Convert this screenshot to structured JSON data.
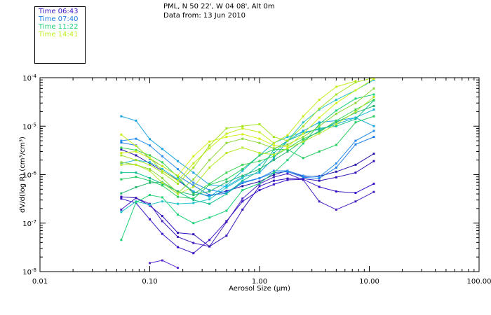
{
  "header": {
    "location": "PML, N 50 22', W 04 08', Alt 0m",
    "data_from": "Data from: 13 Jun 2010"
  },
  "legend": [
    {
      "label": "Time 06:43",
      "color": "#3a14c8"
    },
    {
      "label": "Time 07:40",
      "color": "#1f7ee6"
    },
    {
      "label": "Time 11:22",
      "color": "#20d27a"
    },
    {
      "label": "Time 14:41",
      "color": "#c4ee1e"
    }
  ],
  "chart_data": {
    "type": "line",
    "title": "PML, N 50 22', W 04 08', Alt 0m",
    "subtitle": "Data from: 13 Jun 2010",
    "xlabel": "Aerosol Size (μm)",
    "ylabel": "dV/d(log R) (cm³/cm³)",
    "xscale": "log",
    "yscale": "log",
    "xlim": [
      0.01,
      100
    ],
    "ylim": [
      1e-08,
      0.0001
    ],
    "x_ticks": [
      0.01,
      0.1,
      1,
      10,
      100
    ],
    "x_tick_labels": [
      "0.01",
      "0.10",
      "1.00",
      "10.00",
      "100.00"
    ],
    "y_ticks": [
      1e-08,
      1e-07,
      1e-06,
      1e-05,
      0.0001
    ],
    "y_tick_labels": [
      {
        "base": "10",
        "exp": "-8"
      },
      {
        "base": "10",
        "exp": "-7"
      },
      {
        "base": "10",
        "exp": "-6"
      },
      {
        "base": "10",
        "exp": "-5"
      },
      {
        "base": "10",
        "exp": "-4"
      }
    ],
    "x": [
      0.055,
      0.075,
      0.1,
      0.13,
      0.18,
      0.25,
      0.35,
      0.5,
      0.7,
      1.0,
      1.35,
      1.8,
      2.5,
      3.5,
      5.0,
      7.5,
      11.0
    ],
    "series": [
      {
        "name": "06:43",
        "color": "#3a14c8",
        "values": [
          3.2e-07,
          2.6e-07,
          1.2e-07,
          6e-08,
          3.2e-08,
          2.4e-08,
          4.5e-08,
          1.1e-07,
          2.8e-07,
          4.8e-07,
          6.3e-07,
          7.8e-07,
          8e-07,
          5.6e-07,
          4.5e-07,
          4.2e-07,
          6.5e-07
        ]
      },
      {
        "name": "06:43",
        "color": "#4820c0",
        "values": [
          1.9e-07,
          3.3e-07,
          2.5e-07,
          1.1e-07,
          5.2e-08,
          3.9e-08,
          3.3e-08,
          1.05e-07,
          3.2e-07,
          6.5e-07,
          8.9e-07,
          1.05e-06,
          7.8e-07,
          2.8e-07,
          1.9e-07,
          2.8e-07,
          4.4e-07
        ]
      },
      {
        "name": "06:43",
        "color": "#3410b8",
        "values": [
          3.5e-07,
          3.3e-07,
          2.3e-07,
          1.4e-07,
          6.3e-08,
          5.9e-08,
          3.3e-08,
          5.5e-08,
          1.9e-07,
          5.8e-07,
          7.5e-07,
          8.3e-07,
          8.3e-07,
          7.5e-07,
          8.8e-07,
          1.1e-06,
          1.9e-06
        ]
      },
      {
        "name": "06:43",
        "color": "#5a2cd0",
        "values": [
          null,
          null,
          1.5e-08,
          1.7e-08,
          1.2e-08,
          null,
          null,
          null,
          null,
          null,
          null,
          null,
          null,
          null,
          null,
          null,
          null
        ]
      },
      {
        "name": "06:43",
        "color": "#2a18a8",
        "values": [
          3.3e-06,
          2.5e-06,
          1.7e-06,
          1.2e-06,
          7.7e-07,
          4.4e-07,
          3.6e-07,
          4.6e-07,
          5.8e-07,
          7.2e-07,
          1e-06,
          1.2e-06,
          9.2e-07,
          9.3e-07,
          1.15e-06,
          1.6e-06,
          2.7e-06
        ]
      },
      {
        "name": "07:40",
        "color": "#1f7ee6",
        "values": [
          4.6e-06,
          4e-06,
          2.1e-06,
          1.5e-06,
          9.5e-07,
          6e-07,
          3.8e-07,
          4.1e-07,
          6.7e-07,
          8.4e-07,
          1.1e-06,
          1.15e-06,
          8.8e-07,
          8.4e-07,
          1.4e-06,
          4.2e-06,
          6e-06
        ]
      },
      {
        "name": "07:40",
        "color": "#2a8ef0",
        "values": [
          5e-06,
          5.5e-06,
          4e-06,
          2.4e-06,
          1.3e-06,
          6.8e-07,
          4.8e-07,
          4.3e-07,
          7e-07,
          8.5e-07,
          1.2e-06,
          1.2e-06,
          9.5e-07,
          9e-07,
          1.7e-06,
          5e-06,
          8e-06
        ]
      },
      {
        "name": "07:40",
        "color": "#1ca6e0",
        "values": [
          1.6e-05,
          1.3e-05,
          5.4e-06,
          3.4e-06,
          1.9e-06,
          1.1e-06,
          6.2e-07,
          5.7e-07,
          9e-07,
          1.1e-06,
          2.2e-06,
          5e-06,
          8e-06,
          1.2e-05,
          1.3e-05,
          1.5e-05,
          1e-05
        ]
      },
      {
        "name": "07:40",
        "color": "#18b8d8",
        "values": [
          1.7e-06,
          2e-06,
          1.8e-06,
          1.3e-06,
          8e-07,
          4.5e-07,
          3.5e-07,
          6e-07,
          1.2e-06,
          2.5e-06,
          4.5e-06,
          6e-06,
          7.5e-06,
          8.5e-06,
          1.1e-05,
          1.5e-05,
          2.2e-05
        ]
      },
      {
        "name": "07:40",
        "color": "#22c4c8",
        "values": [
          1.7e-07,
          2.8e-07,
          2.4e-07,
          2.8e-07,
          2.5e-07,
          2.6e-07,
          3.1e-07,
          5.4e-07,
          8.5e-07,
          1.6e-06,
          2.8e-06,
          5e-06,
          1.2e-05,
          2.2e-05,
          3.5e-05,
          5.5e-05,
          9e-05
        ]
      },
      {
        "name": "11:22",
        "color": "#20d27a",
        "values": [
          4.5e-08,
          2.7e-07,
          3.8e-07,
          3.4e-07,
          1.5e-07,
          1e-07,
          1.3e-07,
          1.8e-07,
          4.8e-07,
          6.6e-07,
          1.1e-06,
          2e-06,
          4.4e-06,
          1.1e-05,
          2.1e-05,
          3.7e-05,
          4.5e-05
        ]
      },
      {
        "name": "11:22",
        "color": "#14c090",
        "values": [
          1.1e-06,
          1.1e-06,
          8.5e-07,
          6.5e-07,
          4.5e-07,
          3e-07,
          2.5e-07,
          4e-07,
          7.5e-07,
          1.2e-06,
          3.3e-06,
          5e-06,
          7e-06,
          9e-06,
          1e-05,
          1.4e-05,
          3.4e-05
        ]
      },
      {
        "name": "11:22",
        "color": "#28cc60",
        "values": [
          8e-07,
          9e-07,
          7.5e-07,
          6e-07,
          3.5e-07,
          3.2e-07,
          6.2e-07,
          8e-07,
          1.3e-06,
          2.5e-06,
          3.3e-06,
          3.3e-06,
          2.2e-06,
          3e-06,
          4.1e-06,
          1.2e-05,
          1.6e-05
        ]
      },
      {
        "name": "11:22",
        "color": "#3ad456",
        "values": [
          3.6e-06,
          3.2e-06,
          2.5e-06,
          1.8e-06,
          9e-07,
          4e-07,
          6.5e-07,
          1.1e-06,
          1.6e-06,
          1.9e-06,
          2.4e-06,
          3.5e-06,
          5.5e-06,
          7.5e-06,
          1.3e-05,
          2.2e-05,
          3.5e-05
        ]
      },
      {
        "name": "11:22",
        "color": "#26b870",
        "values": [
          4.1e-07,
          5.5e-07,
          6.8e-07,
          7e-07,
          4.5e-07,
          3.8e-07,
          4.5e-07,
          7e-07,
          9.5e-07,
          1.3e-06,
          2e-06,
          3e-06,
          5e-06,
          8e-06,
          1.2e-05,
          1.9e-05,
          2.6e-05
        ]
      },
      {
        "name": "14:41",
        "color": "#c4ee1e",
        "values": [
          6.7e-06,
          3.9e-06,
          2.2e-06,
          1.2e-06,
          7.5e-07,
          1.7e-06,
          3.5e-06,
          7e-06,
          9e-06,
          7.5e-06,
          4.5e-06,
          6.5e-06,
          1.6e-05,
          3.5e-05,
          6.5e-05,
          8.5e-05,
          null
        ]
      },
      {
        "name": "14:41",
        "color": "#a6e422",
        "values": [
          2.5e-06,
          2e-06,
          1.6e-06,
          1.1e-06,
          6.5e-07,
          1.4e-06,
          4e-06,
          9e-06,
          1e-05,
          1.1e-05,
          6e-06,
          5e-06,
          1e-05,
          2.3e-05,
          4.5e-05,
          8e-05,
          0.0001
        ]
      },
      {
        "name": "14:41",
        "color": "#8ed83a",
        "values": [
          1.8e-06,
          1.6e-06,
          1.3e-06,
          8.5e-07,
          4.2e-07,
          8e-07,
          2e-06,
          4.5e-06,
          5.5e-06,
          4.5e-06,
          3.5e-06,
          4.2e-06,
          6e-06,
          1e-05,
          1.8e-05,
          3e-05,
          6e-05
        ]
      },
      {
        "name": "14:41",
        "color": "#b8e82e",
        "values": [
          1.6e-06,
          1.6e-06,
          1.2e-06,
          6.8e-07,
          4e-07,
          5.6e-07,
          1.4e-06,
          2.8e-06,
          3.6e-06,
          2.8e-06,
          2.6e-06,
          3.5e-06,
          4.8e-06,
          7e-06,
          1.1e-05,
          2e-05,
          4e-05
        ]
      },
      {
        "name": "14:41",
        "color": "#d2f018",
        "values": [
          2.8e-06,
          3e-06,
          2.2e-06,
          1.5e-06,
          9.5e-07,
          2.4e-06,
          4.8e-06,
          6e-06,
          6.8e-06,
          5.5e-06,
          4e-06,
          3.8e-06,
          7e-06,
          1.5e-05,
          3e-05,
          5.5e-05,
          9.5e-05
        ]
      }
    ]
  }
}
